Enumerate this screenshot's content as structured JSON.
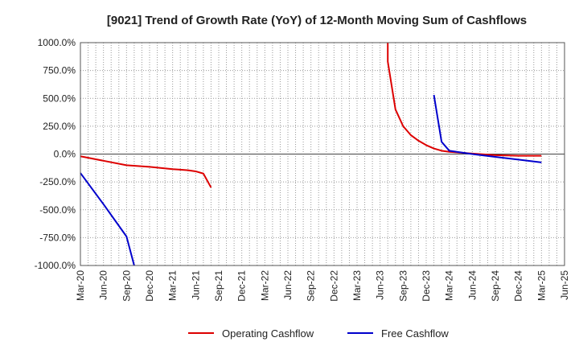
{
  "chart_data": {
    "type": "line",
    "title": "[9021]  Trend of Growth Rate (YoY) of 12-Month Moving Sum of Cashflows",
    "xlabel": "",
    "ylabel": "",
    "ylim": [
      -1000,
      1000
    ],
    "yticks": [
      {
        "value": 1000,
        "label": "1000.0%"
      },
      {
        "value": 750,
        "label": "750.0%"
      },
      {
        "value": 500,
        "label": "500.0%"
      },
      {
        "value": 250,
        "label": "250.0%"
      },
      {
        "value": 0,
        "label": "0.0%"
      },
      {
        "value": -250,
        "label": "-250.0%"
      },
      {
        "value": -500,
        "label": "-500.0%"
      },
      {
        "value": -750,
        "label": "-750.0%"
      },
      {
        "value": -1000,
        "label": "-1000.0%"
      }
    ],
    "xrange": [
      "2020-03",
      "2025-06"
    ],
    "xticks": [
      "Mar-20",
      "Jun-20",
      "Sep-20",
      "Dec-20",
      "Mar-21",
      "Jun-21",
      "Sep-21",
      "Dec-21",
      "Mar-22",
      "Jun-22",
      "Sep-22",
      "Dec-22",
      "Mar-23",
      "Jun-23",
      "Sep-23",
      "Dec-23",
      "Mar-24",
      "Jun-24",
      "Sep-24",
      "Dec-24",
      "Mar-25",
      "Jun-25"
    ],
    "grid": true,
    "legend_position": "bottom",
    "series": [
      {
        "name": "Operating Cashflow",
        "color": "#dd0000",
        "segments": [
          [
            [
              "2020-03",
              -20
            ],
            [
              "2020-06",
              -60
            ],
            [
              "2020-09",
              -100
            ],
            [
              "2020-12",
              -115
            ],
            [
              "2021-03",
              -135
            ],
            [
              "2021-04",
              -140
            ],
            [
              "2021-05",
              -145
            ],
            [
              "2021-06",
              -155
            ],
            [
              "2021-07",
              -175
            ],
            [
              "2021-08",
              -300
            ]
          ],
          [
            [
              "2023-07",
              1000
            ],
            [
              "2023-07",
              830
            ],
            [
              "2023-08",
              400
            ],
            [
              "2023-09",
              250
            ],
            [
              "2023-10",
              170
            ],
            [
              "2023-11",
              120
            ],
            [
              "2023-12",
              80
            ],
            [
              "2024-01",
              50
            ],
            [
              "2024-02",
              30
            ],
            [
              "2024-03",
              20
            ],
            [
              "2024-06",
              5
            ],
            [
              "2024-09",
              -10
            ],
            [
              "2024-12",
              -15
            ],
            [
              "2025-03",
              -15
            ]
          ]
        ]
      },
      {
        "name": "Free Cashflow",
        "color": "#0000cc",
        "segments": [
          [
            [
              "2020-03",
              -170
            ],
            [
              "2020-06",
              -450
            ],
            [
              "2020-09",
              -740
            ],
            [
              "2020-10",
              -1000
            ]
          ],
          [
            [
              "2024-01",
              530
            ],
            [
              "2024-02",
              110
            ],
            [
              "2024-03",
              30
            ],
            [
              "2024-06",
              0
            ],
            [
              "2024-09",
              -25
            ],
            [
              "2024-12",
              -50
            ],
            [
              "2025-03",
              -75
            ]
          ]
        ]
      }
    ]
  }
}
